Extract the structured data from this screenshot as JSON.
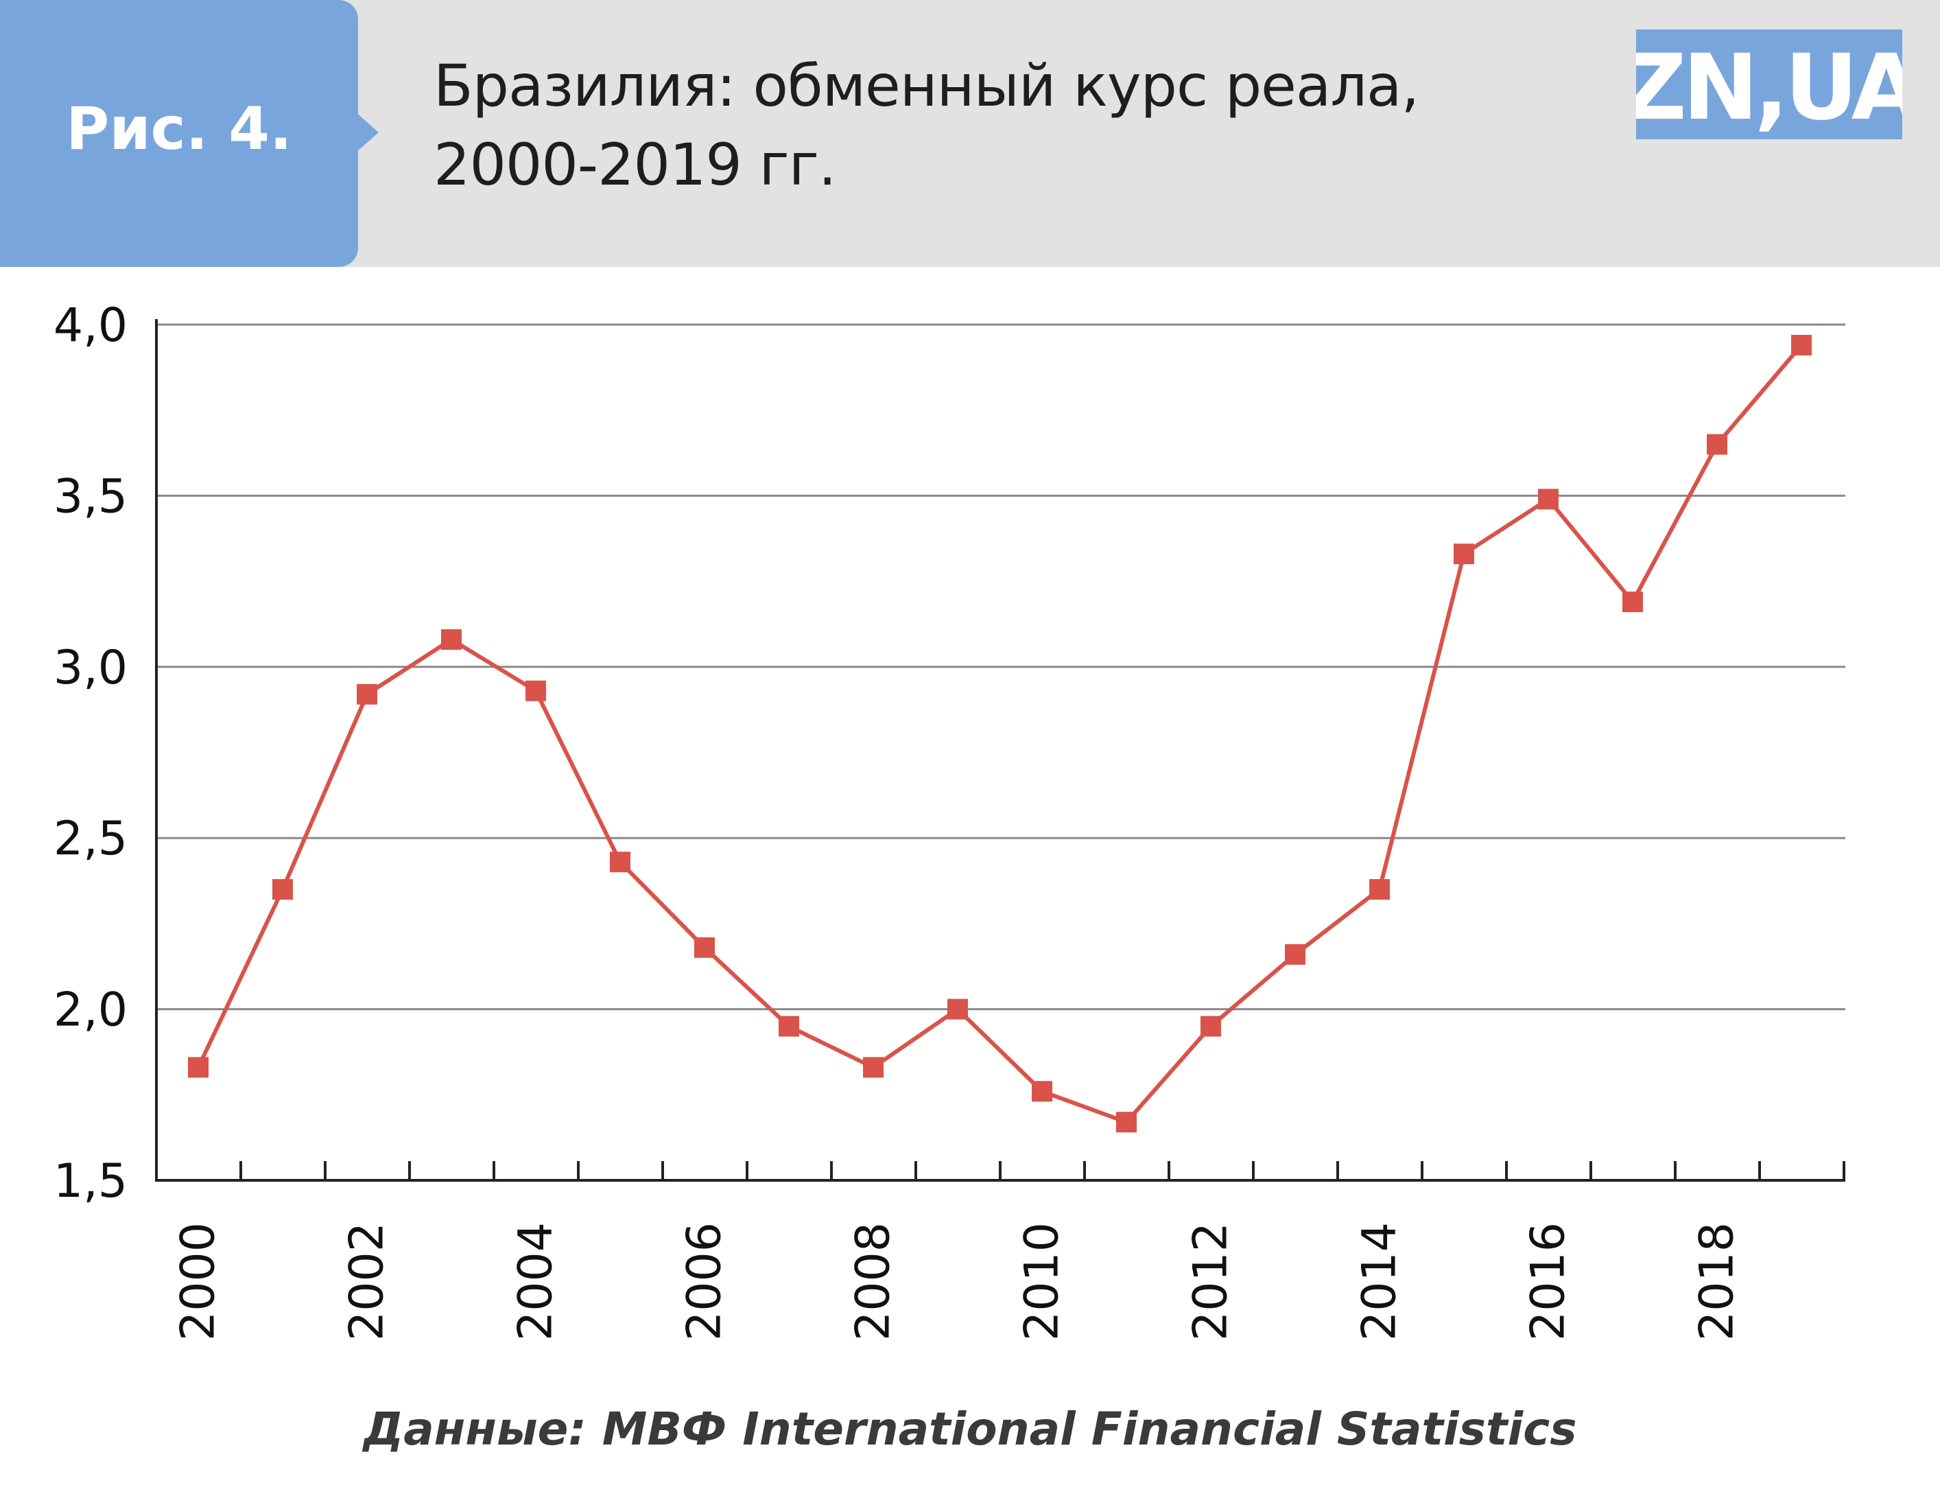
{
  "header": {
    "figure_label": "Рис. 4.",
    "title_line1": "Бразилия: обменный курс реала,",
    "title_line2": "2000-2019 гг.",
    "logo_text": "ZN,UA",
    "colors": {
      "banner": "#e2e2e2",
      "tag": "#78a6dc",
      "logo": "#78a6dc"
    }
  },
  "chart_data": {
    "type": "line",
    "x": [
      2000,
      2001,
      2002,
      2003,
      2004,
      2005,
      2006,
      2007,
      2008,
      2009,
      2010,
      2011,
      2012,
      2013,
      2014,
      2015,
      2016,
      2017,
      2018,
      2019
    ],
    "series": [
      {
        "values": [
          1.83,
          2.35,
          2.92,
          3.08,
          2.93,
          2.43,
          2.18,
          1.95,
          1.83,
          2.0,
          1.76,
          1.67,
          1.95,
          2.16,
          2.35,
          3.33,
          3.49,
          3.19,
          3.65,
          3.94
        ],
        "color": "#d9534a",
        "marker": "square"
      }
    ],
    "x_tick_labels": [
      "2000",
      "2002",
      "2004",
      "2006",
      "2008",
      "2010",
      "2012",
      "2014",
      "2016",
      "2018"
    ],
    "y_tick_labels": [
      "1,5",
      "2,0",
      "2,5",
      "3,0",
      "3,5",
      "4,0"
    ],
    "ylim": [
      1.5,
      4.0
    ],
    "xlim": [
      2000,
      2019
    ],
    "grid": "horizontal",
    "legend": "none",
    "title": "",
    "xlabel": "",
    "ylabel": ""
  },
  "source": "Данные: МВФ International Financial Statistics"
}
